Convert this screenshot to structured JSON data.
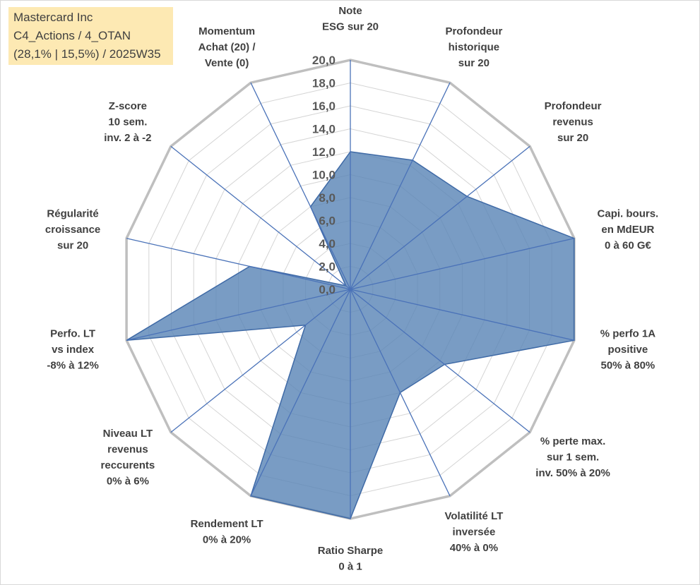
{
  "info": {
    "line1": "Mastercard Inc",
    "line2": "C4_Actions / 4_OTAN",
    "line3": "(28,1% | 15,5%) / 2025W35"
  },
  "chart_data": {
    "type": "radar",
    "max": 20,
    "min": 0,
    "step": 2,
    "tick_labels": [
      "0,0",
      "2,0",
      "4,0",
      "6,0",
      "8,0",
      "10,0",
      "12,0",
      "14,0",
      "16,0",
      "18,0",
      "20,0"
    ],
    "axes": [
      {
        "label": [
          "Note",
          "ESG sur 20"
        ]
      },
      {
        "label": [
          "Profondeur",
          "historique",
          "sur 20"
        ]
      },
      {
        "label": [
          "Profondeur",
          "revenus",
          "sur 20"
        ]
      },
      {
        "label": [
          "Capi. bours.",
          "en MdEUR",
          "0 à 60 G€"
        ]
      },
      {
        "label": [
          "% perfo 1A",
          "positive",
          "50% à 80%"
        ]
      },
      {
        "label": [
          "% perte max.",
          "sur 1 sem.",
          "inv. 50% à 20%"
        ]
      },
      {
        "label": [
          "Volatilité LT",
          "inversée",
          "40% à 0%"
        ]
      },
      {
        "label": [
          "Ratio Sharpe",
          "0 à 1"
        ]
      },
      {
        "label": [
          "Rendement LT",
          "0% à 20%"
        ]
      },
      {
        "label": [
          "Niveau LT",
          "revenus",
          "reccurents",
          "0% à 6%"
        ]
      },
      {
        "label": [
          "Perfo. LT",
          "vs index",
          "-8% à 12%"
        ]
      },
      {
        "label": [
          "Régularité",
          "croissance",
          "sur 20"
        ]
      },
      {
        "label": [
          "Z-score",
          "10 sem.",
          "inv. 2 à -2"
        ]
      },
      {
        "label": [
          "Momentum",
          "Achat (20) /",
          "Vente (0)"
        ]
      }
    ],
    "series": [
      {
        "values": [
          12.0,
          12.5,
          13.0,
          20.0,
          20.0,
          10.5,
          10.0,
          20.0,
          20.0,
          5.0,
          20.0,
          9.0,
          0.5,
          8.0
        ]
      }
    ],
    "colors": {
      "fill": "#5b86b7",
      "stroke": "#3f6aa6",
      "spoke": "#4a72b8",
      "grid": "#d4d4d4"
    }
  }
}
